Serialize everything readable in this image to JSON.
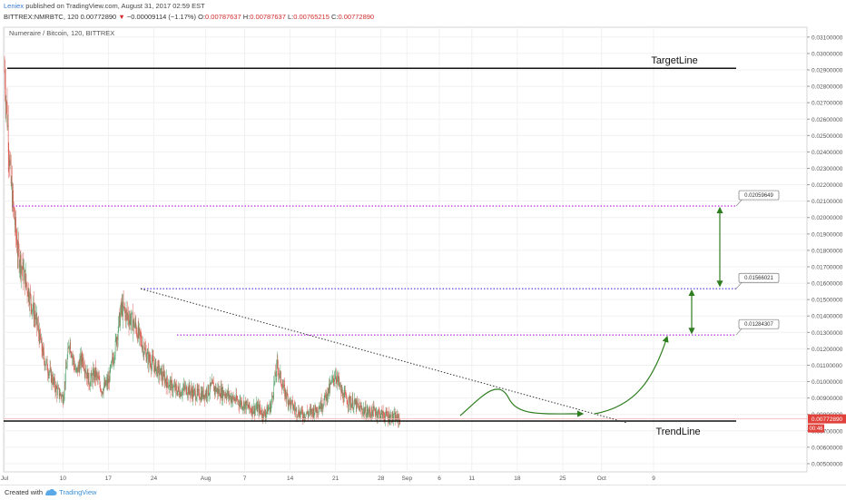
{
  "header": {
    "author": "Leniex",
    "published": "published on TradingView.com, August 31, 2017 02:59 EST",
    "symbol": "BITTREX:NMRBTC, 120",
    "last": "0.00772890",
    "arrow": "▼",
    "change": "−0.00009114 (−1.17%)",
    "o_label": "O:",
    "o_value": "0.00787637",
    "h_label": "H:",
    "h_value": "0.00787637",
    "l_label": "L:",
    "l_value": "0.00765215",
    "c_label": "C:",
    "c_value": "0.00772890"
  },
  "footer": {
    "created_with": "Created with",
    "brand": "TradingView"
  },
  "chart_data": {
    "type": "candlestick",
    "title": "Numeraire / Bitcoin, 120, BITTREX",
    "y_range": [
      0.0045,
      0.0316
    ],
    "y_ticks": [
      "0.03100000",
      "0.03000000",
      "0.02900000",
      "0.02800000",
      "0.02700000",
      "0.02600000",
      "0.02500000",
      "0.02400000",
      "0.02300000",
      "0.02200000",
      "0.02100000",
      "0.02000000",
      "0.01900000",
      "0.01800000",
      "0.01700000",
      "0.01600000",
      "0.01500000",
      "0.01400000",
      "0.01300000",
      "0.01200000",
      "0.01100000",
      "0.01000000",
      "0.00900000",
      "0.00800000",
      "0.00700000",
      "0.00600000",
      "0.00500000"
    ],
    "x_ticks": [
      "Jul",
      "10",
      "17",
      "24",
      "Aug",
      "7",
      "14",
      "21",
      "28",
      "Sep",
      "6",
      "11",
      "18",
      "25",
      "Oct",
      "9"
    ],
    "current_price": "0.00772890",
    "countdown": "00:46",
    "annotations": {
      "target_line": {
        "label": "TargetLine",
        "price": 0.0291
      },
      "trend_line": {
        "label": "TrendLine",
        "price": 0.0076
      },
      "levels": [
        {
          "value": "0.02059649",
          "price": 0.0207,
          "color": "#c040e0"
        },
        {
          "value": "0.01566021",
          "price": 0.01566,
          "color": "#6a5adf"
        },
        {
          "value": "0.01284307",
          "price": 0.01284,
          "color": "#c040e0"
        }
      ]
    },
    "series": [
      {
        "name": "NMRBTC",
        "close_profile": [
          [
            "2017-07-01",
            0.029
          ],
          [
            "2017-07-02",
            0.022
          ],
          [
            "2017-07-03",
            0.018
          ],
          [
            "2017-07-04",
            0.0165
          ],
          [
            "2017-07-05",
            0.015
          ],
          [
            "2017-07-06",
            0.0135
          ],
          [
            "2017-07-07",
            0.0115
          ],
          [
            "2017-07-08",
            0.0105
          ],
          [
            "2017-07-09",
            0.0095
          ],
          [
            "2017-07-10",
            0.009
          ],
          [
            "2017-07-11",
            0.0125
          ],
          [
            "2017-07-12",
            0.0105
          ],
          [
            "2017-07-13",
            0.0115
          ],
          [
            "2017-07-14",
            0.01
          ],
          [
            "2017-07-15",
            0.0105
          ],
          [
            "2017-07-16",
            0.0095
          ],
          [
            "2017-07-17",
            0.01
          ],
          [
            "2017-07-18",
            0.012
          ],
          [
            "2017-07-19",
            0.0145
          ],
          [
            "2017-07-20",
            0.014
          ],
          [
            "2017-07-21",
            0.0135
          ],
          [
            "2017-07-22",
            0.0125
          ],
          [
            "2017-07-23",
            0.0115
          ],
          [
            "2017-07-24",
            0.011
          ],
          [
            "2017-07-25",
            0.0105
          ],
          [
            "2017-07-26",
            0.01
          ],
          [
            "2017-07-27",
            0.0096
          ],
          [
            "2017-07-28",
            0.0094
          ],
          [
            "2017-07-29",
            0.0096
          ],
          [
            "2017-07-30",
            0.0093
          ],
          [
            "2017-07-31",
            0.0092
          ],
          [
            "2017-08-01",
            0.0093
          ],
          [
            "2017-08-02",
            0.0097
          ],
          [
            "2017-08-03",
            0.0094
          ],
          [
            "2017-08-04",
            0.0093
          ],
          [
            "2017-08-05",
            0.009
          ],
          [
            "2017-08-06",
            0.0088
          ],
          [
            "2017-08-07",
            0.0086
          ],
          [
            "2017-08-08",
            0.0083
          ],
          [
            "2017-08-09",
            0.0084
          ],
          [
            "2017-08-10",
            0.008
          ],
          [
            "2017-08-11",
            0.0085
          ],
          [
            "2017-08-12",
            0.011
          ],
          [
            "2017-08-13",
            0.0095
          ],
          [
            "2017-08-14",
            0.0087
          ],
          [
            "2017-08-15",
            0.0082
          ],
          [
            "2017-08-16",
            0.008
          ],
          [
            "2017-08-17",
            0.0081
          ],
          [
            "2017-08-18",
            0.0083
          ],
          [
            "2017-08-19",
            0.0087
          ],
          [
            "2017-08-20",
            0.0095
          ],
          [
            "2017-08-21",
            0.0105
          ],
          [
            "2017-08-22",
            0.0092
          ],
          [
            "2017-08-23",
            0.0088
          ],
          [
            "2017-08-24",
            0.0086
          ],
          [
            "2017-08-25",
            0.0083
          ],
          [
            "2017-08-26",
            0.0081
          ],
          [
            "2017-08-27",
            0.0082
          ],
          [
            "2017-08-28",
            0.008
          ],
          [
            "2017-08-29",
            0.0079
          ],
          [
            "2017-08-30",
            0.0078
          ],
          [
            "2017-08-31",
            0.0077
          ]
        ]
      }
    ]
  }
}
